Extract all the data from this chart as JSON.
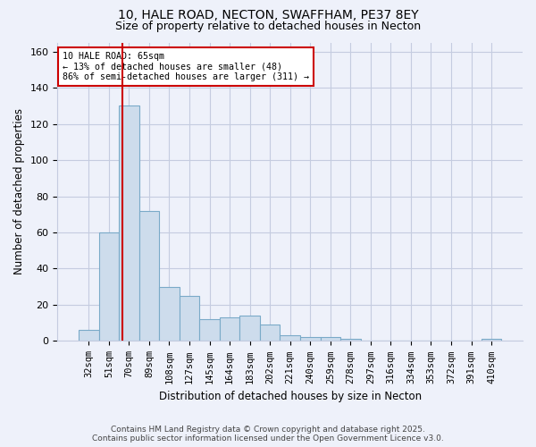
{
  "title1": "10, HALE ROAD, NECTON, SWAFFHAM, PE37 8EY",
  "title2": "Size of property relative to detached houses in Necton",
  "xlabel": "Distribution of detached houses by size in Necton",
  "ylabel": "Number of detached properties",
  "categories": [
    "32sqm",
    "51sqm",
    "70sqm",
    "89sqm",
    "108sqm",
    "127sqm",
    "145sqm",
    "164sqm",
    "183sqm",
    "202sqm",
    "221sqm",
    "240sqm",
    "259sqm",
    "278sqm",
    "297sqm",
    "316sqm",
    "334sqm",
    "353sqm",
    "372sqm",
    "391sqm",
    "410sqm"
  ],
  "values": [
    6,
    60,
    130,
    72,
    30,
    25,
    12,
    13,
    14,
    9,
    3,
    2,
    2,
    1,
    0,
    0,
    0,
    0,
    0,
    0,
    1
  ],
  "bar_color": "#cddcec",
  "bar_edge_color": "#7aaac8",
  "annotation_text_line1": "10 HALE ROAD: 65sqm",
  "annotation_text_line2": "← 13% of detached houses are smaller (48)",
  "annotation_text_line3": "86% of semi-detached houses are larger (311) →",
  "vline_color": "#cc0000",
  "annotation_box_color": "#ffffff",
  "annotation_box_edge_color": "#cc0000",
  "ylim": [
    0,
    165
  ],
  "yticks": [
    0,
    20,
    40,
    60,
    80,
    100,
    120,
    140,
    160
  ],
  "background_color": "#eef1fa",
  "grid_color": "#c5cce0",
  "footer1": "Contains HM Land Registry data © Crown copyright and database right 2025.",
  "footer2": "Contains public sector information licensed under the Open Government Licence v3.0."
}
